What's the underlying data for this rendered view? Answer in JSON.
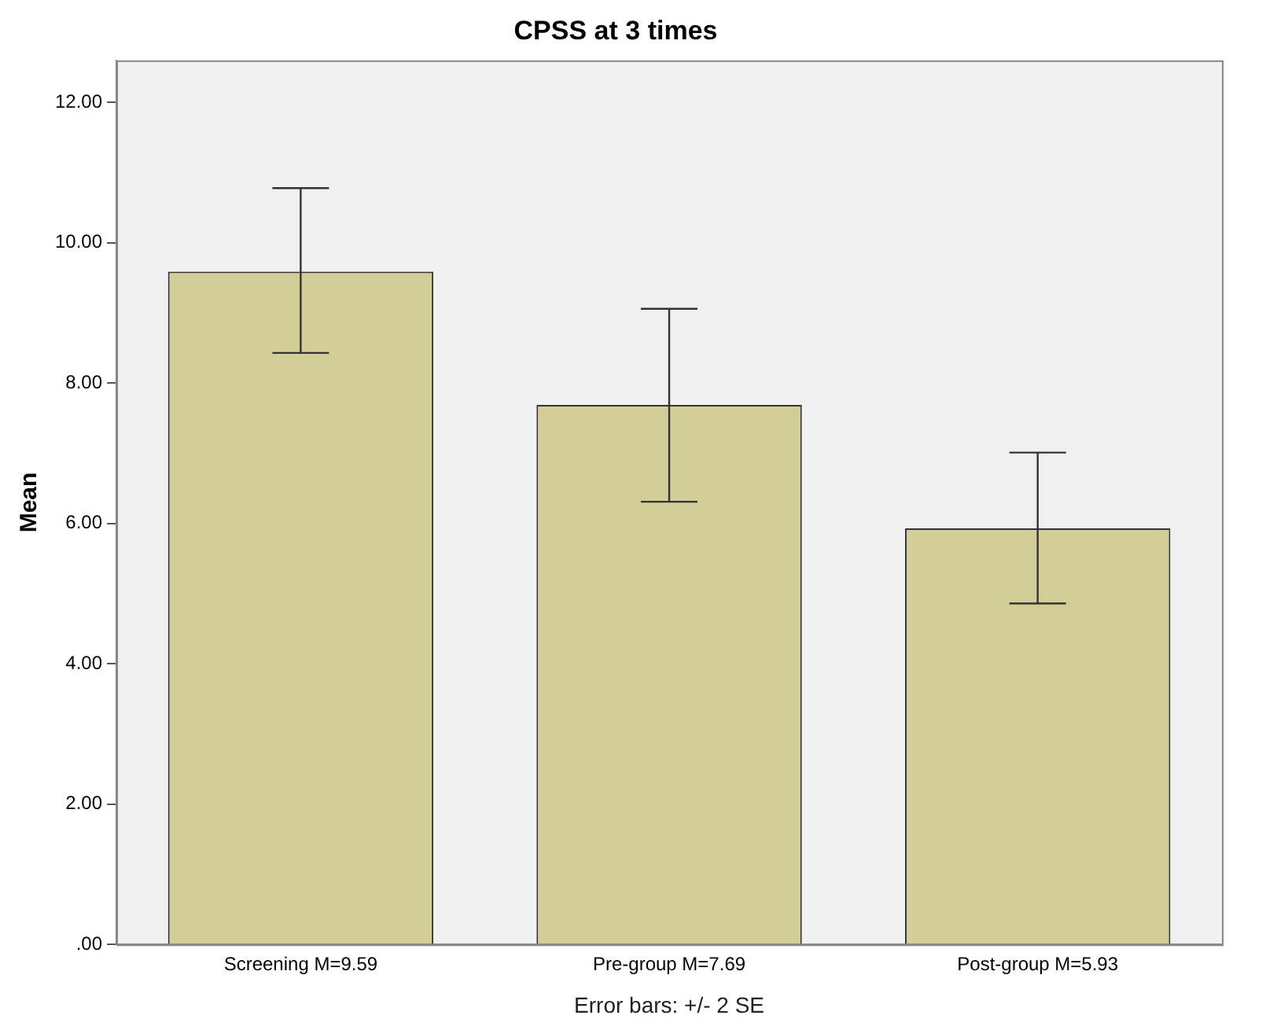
{
  "chart_data": {
    "type": "bar",
    "title": "CPSS at 3 times",
    "ylabel": "Mean",
    "categories": [
      "Screening M=9.59",
      "Pre-group M=7.69",
      "Post-group M=5.93"
    ],
    "values": [
      9.59,
      7.69,
      5.93
    ],
    "color": "#d3ce98",
    "errors": [
      [
        8.43,
        10.78
      ],
      [
        6.31,
        9.06
      ],
      [
        4.86,
        7.01
      ]
    ],
    "ylim": [
      0,
      12.6
    ],
    "yticks": [
      {
        "value": 0,
        "label": ".00"
      },
      {
        "value": 2,
        "label": "2.00"
      },
      {
        "value": 4,
        "label": "4.00"
      },
      {
        "value": 6,
        "label": "6.00"
      },
      {
        "value": 8,
        "label": "8.00"
      },
      {
        "value": 10,
        "label": "10.00"
      },
      {
        "value": 12,
        "label": "12.00"
      }
    ],
    "grid": false,
    "legend": false,
    "annotations": [
      "Error bars: +/- 2 SE"
    ]
  }
}
